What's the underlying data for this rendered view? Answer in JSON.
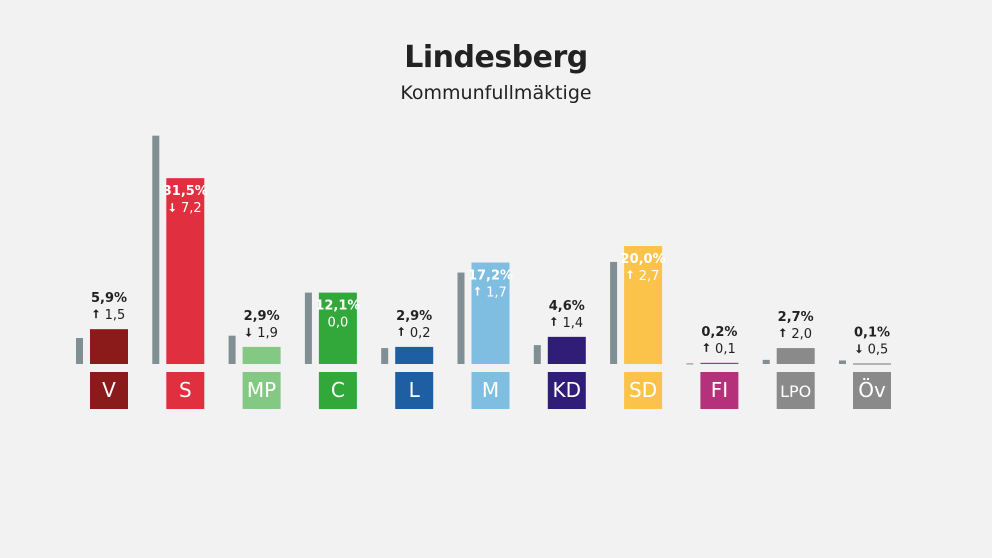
{
  "title": "Lindesberg",
  "subtitle": "Kommunfullmäktige",
  "chart_data": {
    "type": "bar",
    "title": "Lindesberg",
    "subtitle": "Kommunfullmäktige",
    "categories": [
      "V",
      "S",
      "MP",
      "C",
      "L",
      "M",
      "KD",
      "SD",
      "FI",
      "LPO",
      "Öv"
    ],
    "series": [
      {
        "values": [
          5.9,
          31.5,
          2.9,
          12.1,
          2.9,
          17.2,
          4.6,
          20.0,
          0.2,
          2.7,
          0.1
        ]
      },
      {
        "values": [
          4.4,
          38.7,
          4.8,
          12.1,
          2.7,
          15.5,
          3.2,
          17.3,
          0.1,
          0.7,
          0.6
        ]
      }
    ],
    "value_labels": [
      "5,9%",
      "31,5%",
      "2,9%",
      "12,1%",
      "2,9%",
      "17,2%",
      "4,6%",
      "20,0%",
      "0,2%",
      "2,7%",
      "0,1%"
    ],
    "change_labels": [
      "1,5",
      "7,2",
      "1,9",
      "0,0",
      "0,2",
      "1,7",
      "1,4",
      "2,7",
      "0,1",
      "2,0",
      "0,5"
    ],
    "change_direction": [
      "up",
      "down",
      "down",
      "none",
      "up",
      "up",
      "up",
      "up",
      "up",
      "up",
      "down"
    ],
    "colors": [
      "#8b1a1a",
      "#e03040",
      "#83c983",
      "#33a83a",
      "#1d5fa2",
      "#7fbee0",
      "#2f1d78",
      "#fbc34a",
      "#b5317a",
      "#8a8a8a",
      "#8a8a8a"
    ],
    "previous_color": "#7f8f94",
    "ylim": [
      0,
      40
    ]
  }
}
